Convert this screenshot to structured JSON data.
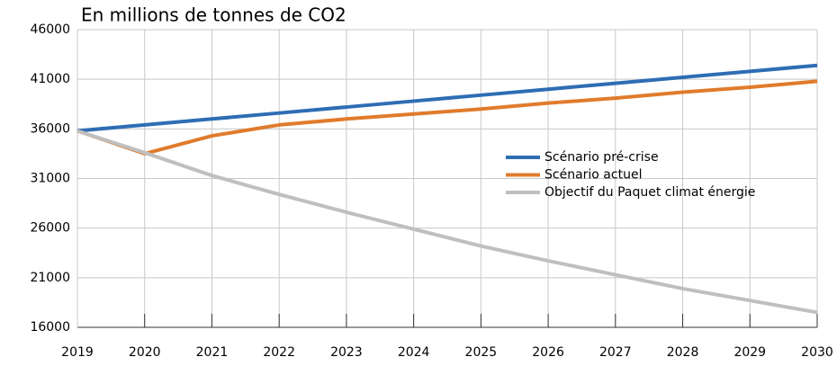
{
  "chart_data": {
    "type": "line",
    "title": "En millions de tonnes de CO2",
    "x": [
      2019,
      2020,
      2021,
      2022,
      2023,
      2024,
      2025,
      2026,
      2027,
      2028,
      2029,
      2030
    ],
    "xlim": [
      2019,
      2030
    ],
    "xticks": [
      2019,
      2020,
      2021,
      2022,
      2023,
      2024,
      2025,
      2026,
      2027,
      2028,
      2029,
      2030
    ],
    "ylim": [
      16000,
      46000
    ],
    "yticks": [
      16000,
      21000,
      26000,
      31000,
      36000,
      41000,
      46000
    ],
    "grid": true,
    "legend": "right",
    "series": [
      {
        "name": "Scénario pré-crise",
        "color": "#2e6db4",
        "values": [
          35800,
          36400,
          37000,
          37600,
          38200,
          38800,
          39400,
          40000,
          40600,
          41200,
          41800,
          42400
        ]
      },
      {
        "name": "Scénario actuel",
        "color": "#e07b2c",
        "values": [
          35800,
          33500,
          35300,
          36400,
          37000,
          37500,
          38000,
          38600,
          39100,
          39700,
          40200,
          40800
        ]
      },
      {
        "name": "Objectif du Paquet climat énergie",
        "color": "#bfbfbf",
        "values": [
          35800,
          33600,
          31300,
          29400,
          27600,
          25900,
          24200,
          22700,
          21300,
          19900,
          18700,
          17500
        ]
      }
    ]
  }
}
